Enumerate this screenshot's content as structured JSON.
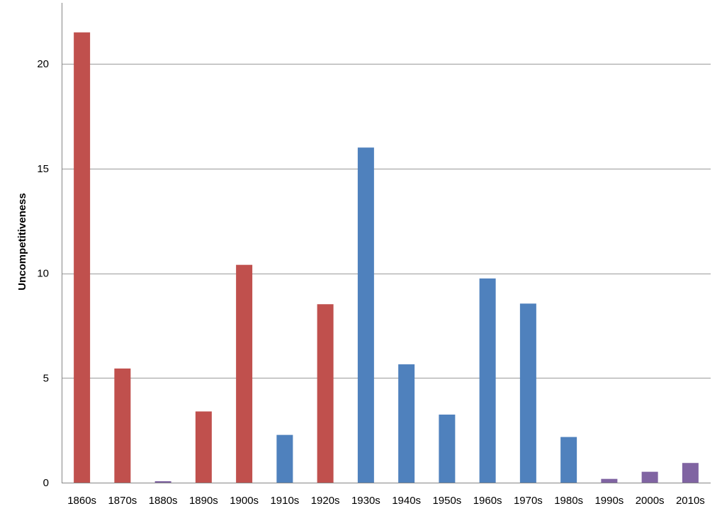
{
  "chart_data": {
    "type": "bar",
    "title": "",
    "xlabel": "",
    "ylabel": "Uncompetitiveness",
    "ylim": [
      0,
      22
    ],
    "yticks": [
      0,
      5,
      10,
      15,
      20
    ],
    "grid": true,
    "legend": "none",
    "categories": [
      "1860s",
      "1870s",
      "1880s",
      "1890s",
      "1900s",
      "1910s",
      "1920s",
      "1930s",
      "1940s",
      "1950s",
      "1960s",
      "1970s",
      "1980s",
      "1990s",
      "2000s",
      "2010s"
    ],
    "values": [
      21.5,
      5.45,
      0.07,
      3.4,
      10.4,
      2.28,
      8.52,
      16.0,
      5.65,
      3.25,
      9.75,
      8.55,
      2.18,
      0.18,
      0.52,
      0.94
    ],
    "bar_colors": [
      "#c0504d",
      "#c0504d",
      "#8064a2",
      "#c0504d",
      "#c0504d",
      "#4f81bd",
      "#c0504d",
      "#4f81bd",
      "#4f81bd",
      "#4f81bd",
      "#4f81bd",
      "#4f81bd",
      "#4f81bd",
      "#8064a2",
      "#8064a2",
      "#8064a2"
    ]
  }
}
